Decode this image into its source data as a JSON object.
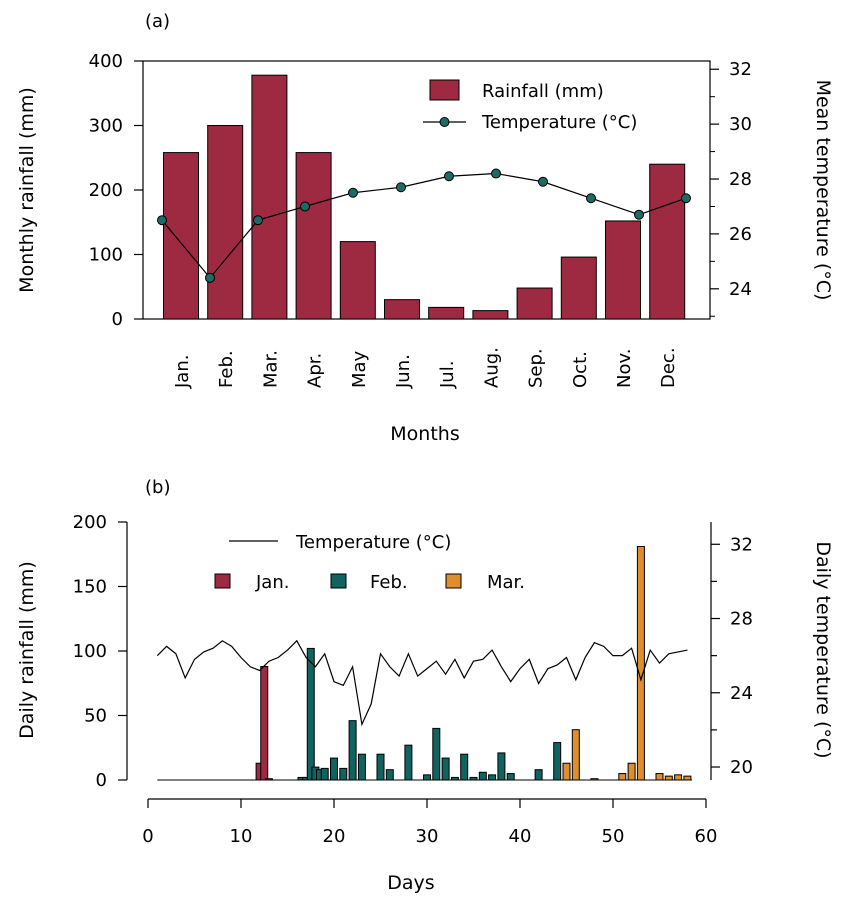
{
  "chart_data": [
    {
      "panel": "(a)",
      "type": "bar+line",
      "xlabel": "Months",
      "ylabel": "Monthly rainfall (mm)",
      "y2label": "Mean temperature (°C)",
      "ylim": [
        0,
        400
      ],
      "y2lim": [
        22.9,
        32.3
      ],
      "yticks": [
        0,
        100,
        200,
        300,
        400
      ],
      "y2ticks": [
        24,
        26,
        28,
        30,
        32
      ],
      "categories": [
        "Jan.",
        "Feb.",
        "Mar.",
        "Apr.",
        "May",
        "Jun.",
        "Jul.",
        "Aug.",
        "Sep.",
        "Oct.",
        "Nov.",
        "Dec."
      ],
      "series": [
        {
          "name": "Rainfall (mm)",
          "type": "bar",
          "axis": "left",
          "color": "#9e2a42",
          "values": [
            258,
            300,
            378,
            258,
            120,
            30,
            18,
            13,
            48,
            96,
            152,
            240
          ]
        },
        {
          "name": "Temperature (°C)",
          "type": "line",
          "axis": "right",
          "color": "#1c6b66",
          "values": [
            26.5,
            24.4,
            26.5,
            27.0,
            27.5,
            27.7,
            28.1,
            28.2,
            27.9,
            27.3,
            26.7,
            27.3
          ]
        }
      ],
      "legend": "top-right"
    },
    {
      "panel": "(b)",
      "type": "bar+line",
      "xlabel": "Days",
      "ylabel": "Daily rainfall (mm)",
      "y2label": "Daily temperature (°C)",
      "xlim": [
        0,
        60
      ],
      "xticks": [
        0,
        10,
        20,
        30,
        40,
        50,
        60
      ],
      "ylim": [
        0,
        200
      ],
      "y2lim": [
        19.3,
        33.2
      ],
      "yticks": [
        0,
        50,
        100,
        150,
        200
      ],
      "y2ticks": [
        20,
        24,
        28,
        32
      ],
      "legend_line": "Temperature (°C)",
      "series": [
        {
          "name": "Jan.",
          "color": "#9e2a42",
          "x": [
            12,
            12.5,
            13
          ],
          "values": [
            13,
            88,
            1
          ]
        },
        {
          "name": "Feb.",
          "color": "#11635f",
          "x": [
            16.5,
            17,
            17.5,
            18,
            18.5,
            19,
            20,
            21,
            22,
            23,
            25,
            26,
            28,
            30,
            31,
            32,
            33,
            34,
            35,
            36,
            37,
            38,
            39,
            42,
            44
          ],
          "values": [
            2,
            2,
            102,
            10,
            8,
            9,
            17,
            9,
            46,
            20,
            20,
            8,
            27,
            4,
            40,
            17,
            2,
            20,
            2,
            6,
            4,
            21,
            5,
            8,
            29
          ]
        },
        {
          "name": "Mar.",
          "color": "#de8e2c",
          "x": [
            45,
            46,
            48,
            51,
            52,
            53,
            55,
            56,
            57,
            58
          ],
          "values": [
            13,
            39,
            1,
            5,
            13,
            181,
            5,
            3,
            4,
            3
          ]
        }
      ],
      "temperature": {
        "x": [
          1,
          2,
          3,
          4,
          5,
          6,
          7,
          8,
          9,
          10,
          11,
          12,
          13,
          14,
          15,
          16,
          17,
          18,
          19,
          20,
          21,
          22,
          23,
          24,
          25,
          26,
          27,
          28,
          29,
          30,
          31,
          32,
          33,
          34,
          35,
          36,
          37,
          38,
          39,
          40,
          41,
          42,
          43,
          44,
          45,
          46,
          47,
          48,
          49,
          50,
          51,
          52,
          53,
          54,
          55,
          56,
          57,
          58
        ],
        "values": [
          26.0,
          26.5,
          26.1,
          24.8,
          25.8,
          26.2,
          26.4,
          26.8,
          26.5,
          25.9,
          25.4,
          25.2,
          25.7,
          25.9,
          26.3,
          26.8,
          25.9,
          25.4,
          26.1,
          24.6,
          24.4,
          25.4,
          22.3,
          23.4,
          26.1,
          25.4,
          24.9,
          26.1,
          24.9,
          25.3,
          25.7,
          25.0,
          25.8,
          24.8,
          25.7,
          25.8,
          26.3,
          25.4,
          24.6,
          25.3,
          25.8,
          24.5,
          25.3,
          25.5,
          25.9,
          24.7,
          25.9,
          26.7,
          26.5,
          26.0,
          26.0,
          26.4,
          24.7,
          26.3,
          25.6,
          26.1,
          26.2,
          26.3
        ]
      },
      "legend": "top-left"
    }
  ],
  "panel_a": {
    "label": "(a)",
    "ylabel": "Monthly rainfall (mm)",
    "y2label": "Mean temperature (°C)",
    "xlabel": "Months",
    "legend_bar": "Rainfall (mm)",
    "legend_line": "Temperature (°C)"
  },
  "panel_b": {
    "label": "(b)",
    "ylabel": "Daily rainfall (mm)",
    "y2label": "Daily temperature (°C)",
    "xlabel": "Days",
    "legend_line": "Temperature (°C)",
    "legend_jan": "Jan.",
    "legend_feb": "Feb.",
    "legend_mar": "Mar."
  }
}
